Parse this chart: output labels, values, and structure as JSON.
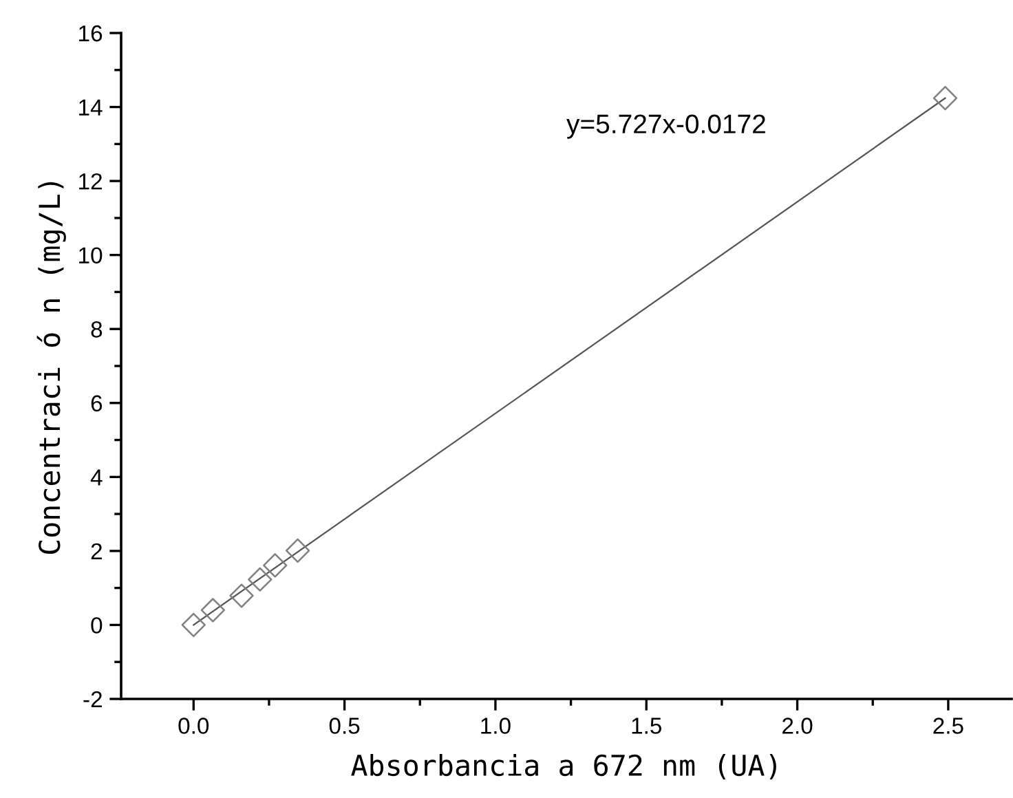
{
  "chart_data": {
    "type": "scatter",
    "xlabel": "Absorbancia a 672 nm (UA)",
    "ylabel": "Concentraci ó n (mg/L)",
    "annotations": [
      "y=5.727x-0.0172"
    ],
    "series": [
      {
        "color": "#808080",
        "marker": "diamond",
        "x": [
          0.0,
          0.064,
          0.159,
          0.22,
          0.27,
          0.345,
          2.49
        ],
        "values": [
          0.0,
          0.4,
          0.79,
          1.23,
          1.61,
          2.01,
          14.24
        ]
      },
      {
        "type": "line",
        "color": "#555555",
        "x": [
          0.0,
          2.49
        ],
        "values": [
          0.0,
          14.24
        ]
      }
    ],
    "xlim": [
      -0.24,
      2.71
    ],
    "xticks": [
      {
        "value": 0,
        "label": "0.0"
      },
      0.5,
      {
        "value": 1,
        "label": "1.0"
      },
      1.5,
      {
        "value": 2,
        "label": "2.0"
      },
      2.5
    ],
    "ylim": [
      -2,
      16
    ],
    "yticks": [
      -2,
      0,
      2,
      4,
      6,
      8,
      10,
      12,
      14,
      16
    ],
    "grid": false
  }
}
